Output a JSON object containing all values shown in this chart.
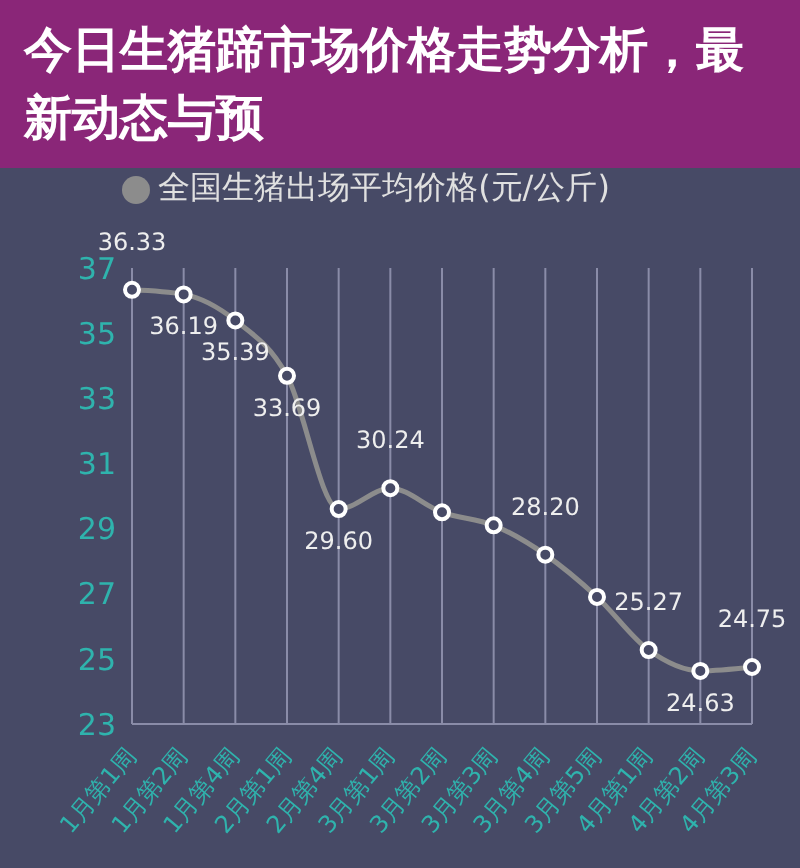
{
  "chart_data": {
    "type": "line",
    "title": "今日生猪蹄市场价格走势分析，最新动态与预",
    "categories": [
      "1月第1周",
      "1月第2周",
      "1月第4周",
      "2月第1周",
      "2月第4周",
      "3月第1周",
      "3月第2周",
      "3月第3周",
      "3月第4周",
      "3月第5周",
      "4月第1周",
      "4月第2周",
      "4月第3周"
    ],
    "series": [
      {
        "name": "全国生猪出场平均价格(元/公斤)",
        "color": "#8c8c8c",
        "values": [
          36.33,
          36.19,
          35.39,
          33.69,
          29.6,
          30.24,
          29.5,
          29.1,
          28.2,
          26.9,
          25.27,
          24.63,
          24.75
        ],
        "value_labels": [
          "36.33",
          "36.19",
          "35.39",
          "33.69",
          "29.60",
          "30.24",
          null,
          null,
          "28.20",
          null,
          "25.27",
          "24.63",
          "24.75"
        ]
      }
    ],
    "ylim": [
      23,
      37
    ],
    "yticks": [
      23,
      25,
      27,
      29,
      31,
      33,
      35,
      37
    ],
    "grid": "x",
    "legend": "top",
    "marker": "circle",
    "line_style": "solid"
  }
}
